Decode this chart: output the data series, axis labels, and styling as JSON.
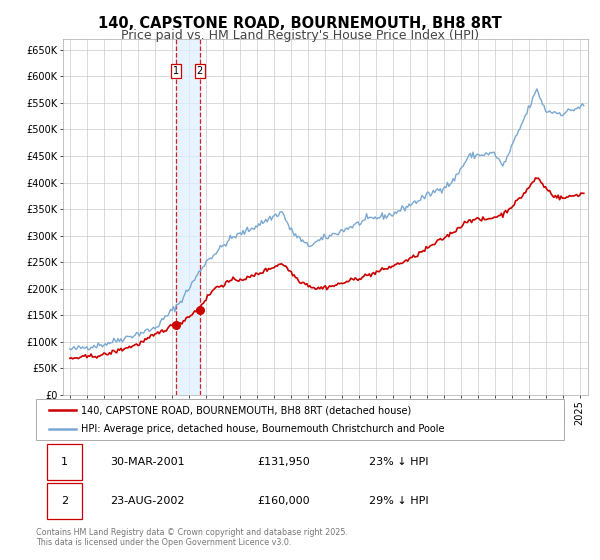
{
  "title": "140, CAPSTONE ROAD, BOURNEMOUTH, BH8 8RT",
  "subtitle": "Price paid vs. HM Land Registry's House Price Index (HPI)",
  "ylim": [
    0,
    670000
  ],
  "yticks": [
    0,
    50000,
    100000,
    150000,
    200000,
    250000,
    300000,
    350000,
    400000,
    450000,
    500000,
    550000,
    600000,
    650000
  ],
  "xlim_start": 1994.6,
  "xlim_end": 2025.5,
  "red_line_color": "#cc0000",
  "blue_line_color": "#7aa8d2",
  "highlight_fill": "#ddeeff",
  "transaction1_x": 2001.24,
  "transaction2_x": 2002.65,
  "transaction1_y": 131950,
  "transaction2_y": 160000,
  "legend1": "140, CAPSTONE ROAD, BOURNEMOUTH, BH8 8RT (detached house)",
  "legend2": "HPI: Average price, detached house, Bournemouth Christchurch and Poole",
  "table_row1": [
    "1",
    "30-MAR-2001",
    "£131,950",
    "23% ↓ HPI"
  ],
  "table_row2": [
    "2",
    "23-AUG-2002",
    "£160,000",
    "29% ↓ HPI"
  ],
  "footnote": "Contains HM Land Registry data © Crown copyright and database right 2025.\nThis data is licensed under the Open Government Licence v3.0.",
  "background_color": "#ffffff",
  "grid_color": "#cccccc",
  "title_fontsize": 10.5,
  "subtitle_fontsize": 9,
  "tick_fontsize": 7
}
